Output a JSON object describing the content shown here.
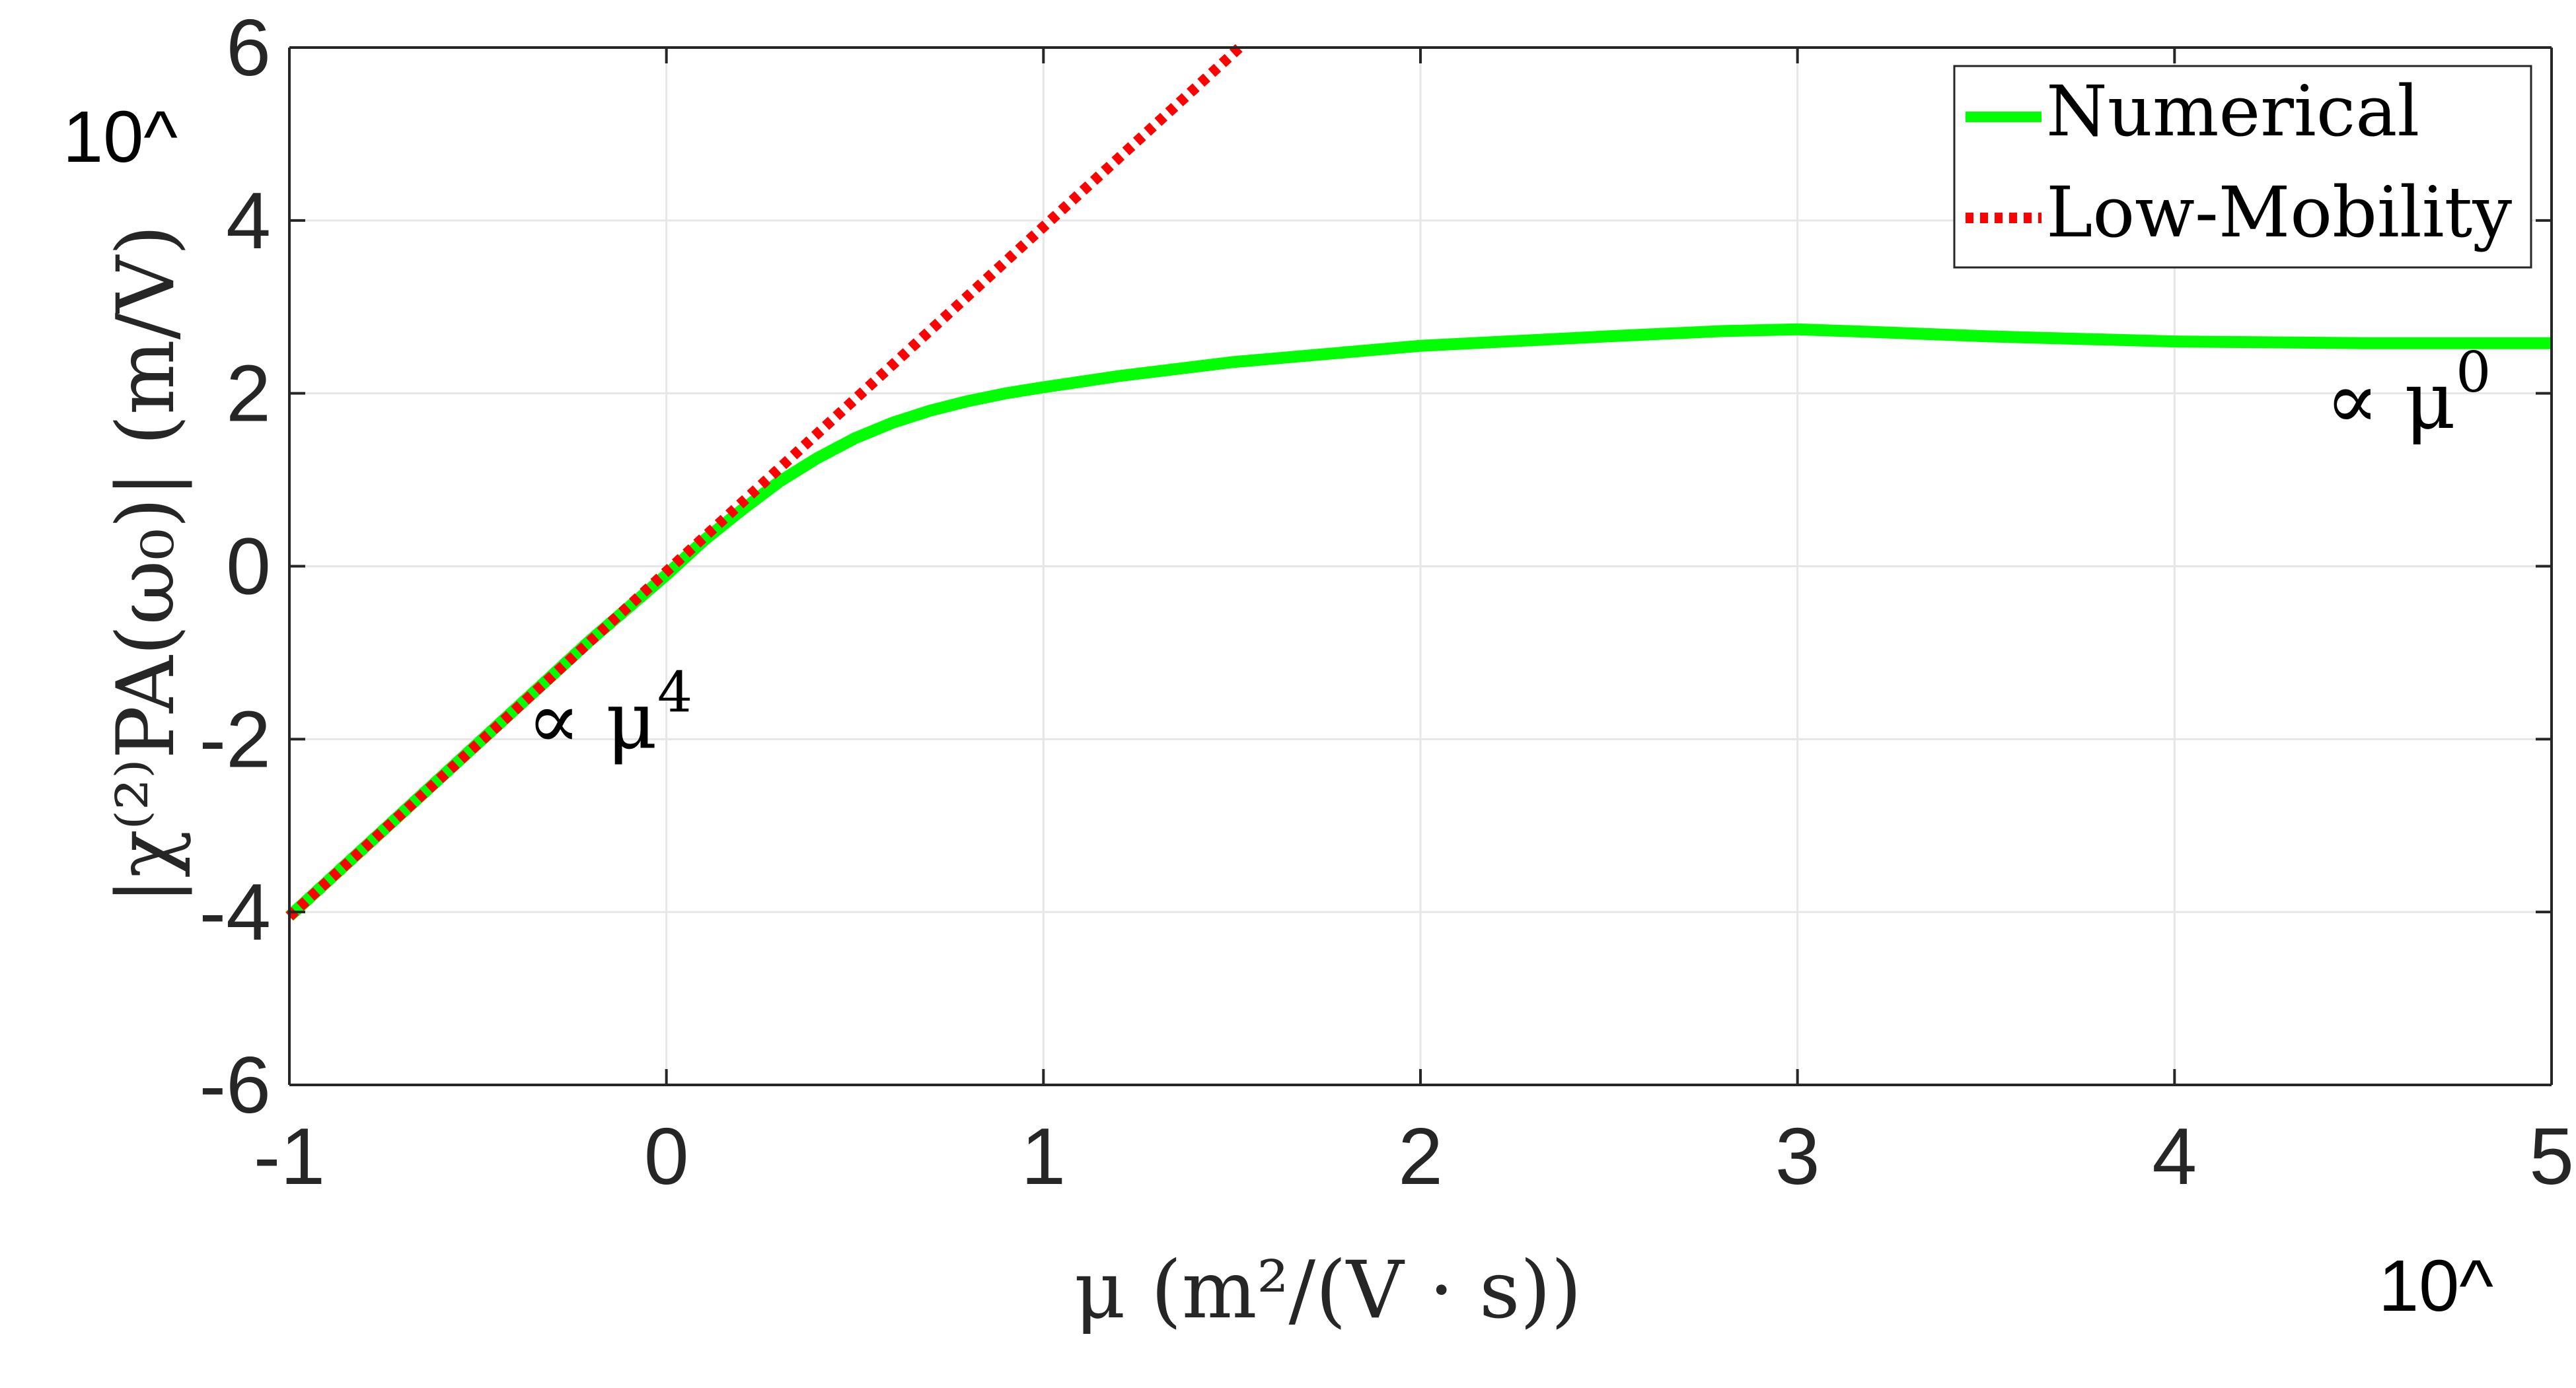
{
  "chart_data": {
    "type": "line",
    "xlabel": "μ (m²/(V · s))",
    "ylabel": "|χ⁽²⁾PA(ω₀)| (m/V)",
    "x_exponent_label": "10^",
    "y_exponent_label": "10^",
    "xlim": [
      -1,
      5
    ],
    "ylim": [
      -6,
      6
    ],
    "x_ticks": [
      -1,
      0,
      1,
      2,
      3,
      4,
      5
    ],
    "y_ticks": [
      -6,
      -4,
      -2,
      0,
      2,
      4,
      6
    ],
    "x_tick_labels": [
      "-1",
      "0",
      "1",
      "2",
      "3",
      "4",
      "5"
    ],
    "y_tick_labels": [
      "-6",
      "-4",
      "-2",
      "0",
      "2",
      "4",
      "6"
    ],
    "grid": true,
    "legend_position": "top-right",
    "series": [
      {
        "name": "Numerical",
        "color": "#00ff00",
        "style": "solid",
        "x": [
          -1,
          -0.8,
          -0.6,
          -0.4,
          -0.2,
          0,
          0.1,
          0.2,
          0.3,
          0.4,
          0.5,
          0.6,
          0.7,
          0.8,
          0.9,
          1.0,
          1.2,
          1.5,
          2.0,
          2.5,
          2.8,
          3.0,
          3.2,
          3.5,
          4.0,
          4.5,
          5.0
        ],
        "y": [
          -4.05,
          -3.25,
          -2.45,
          -1.65,
          -0.85,
          -0.1,
          0.3,
          0.65,
          0.98,
          1.25,
          1.48,
          1.66,
          1.8,
          1.91,
          2.0,
          2.07,
          2.2,
          2.36,
          2.55,
          2.66,
          2.72,
          2.74,
          2.71,
          2.66,
          2.6,
          2.58,
          2.58
        ]
      },
      {
        "name": "Low-Mobility",
        "color": "#ff0000",
        "style": "dotted",
        "x": [
          -1,
          1.52
        ],
        "y": [
          -4.05,
          6.0
        ]
      }
    ],
    "annotations": [
      {
        "text": "∝ μ",
        "sup": "4",
        "x": -0.37,
        "y": -2.1
      },
      {
        "text": "∝ μ",
        "sup": "0",
        "x": 4.4,
        "y": 1.6
      }
    ]
  }
}
